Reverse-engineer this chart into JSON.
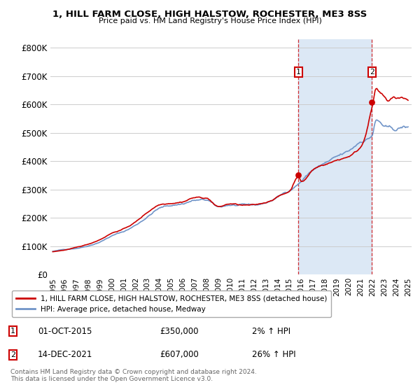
{
  "title": "1, HILL FARM CLOSE, HIGH HALSTOW, ROCHESTER, ME3 8SS",
  "subtitle": "Price paid vs. HM Land Registry's House Price Index (HPI)",
  "ylabel_ticks": [
    "£0",
    "£100K",
    "£200K",
    "£300K",
    "£400K",
    "£500K",
    "£600K",
    "£700K",
    "£800K"
  ],
  "ytick_vals": [
    0,
    100000,
    200000,
    300000,
    400000,
    500000,
    600000,
    700000,
    800000
  ],
  "ylim": [
    0,
    830000
  ],
  "xlim_start": 1994.8,
  "xlim_end": 2025.3,
  "hpi_color": "#7094C8",
  "price_color": "#CC0000",
  "sale1_year": 2015.75,
  "sale1_price": 350000,
  "sale2_year": 2021.96,
  "sale2_price": 607000,
  "sale1_label": "1",
  "sale2_label": "2",
  "annotation1": "01-OCT-2015",
  "annotation1_price": "£350,000",
  "annotation1_hpi": "2% ↑ HPI",
  "annotation2": "14-DEC-2021",
  "annotation2_price": "£607,000",
  "annotation2_hpi": "26% ↑ HPI",
  "legend_line1": "1, HILL FARM CLOSE, HIGH HALSTOW, ROCHESTER, ME3 8SS (detached house)",
  "legend_line2": "HPI: Average price, detached house, Medway",
  "footer": "Contains HM Land Registry data © Crown copyright and database right 2024.\nThis data is licensed under the Open Government Licence v3.0.",
  "background_color": "#ffffff",
  "plot_bg_color": "#ffffff",
  "grid_color": "#cccccc",
  "shaded_region_color": "#dce8f5"
}
